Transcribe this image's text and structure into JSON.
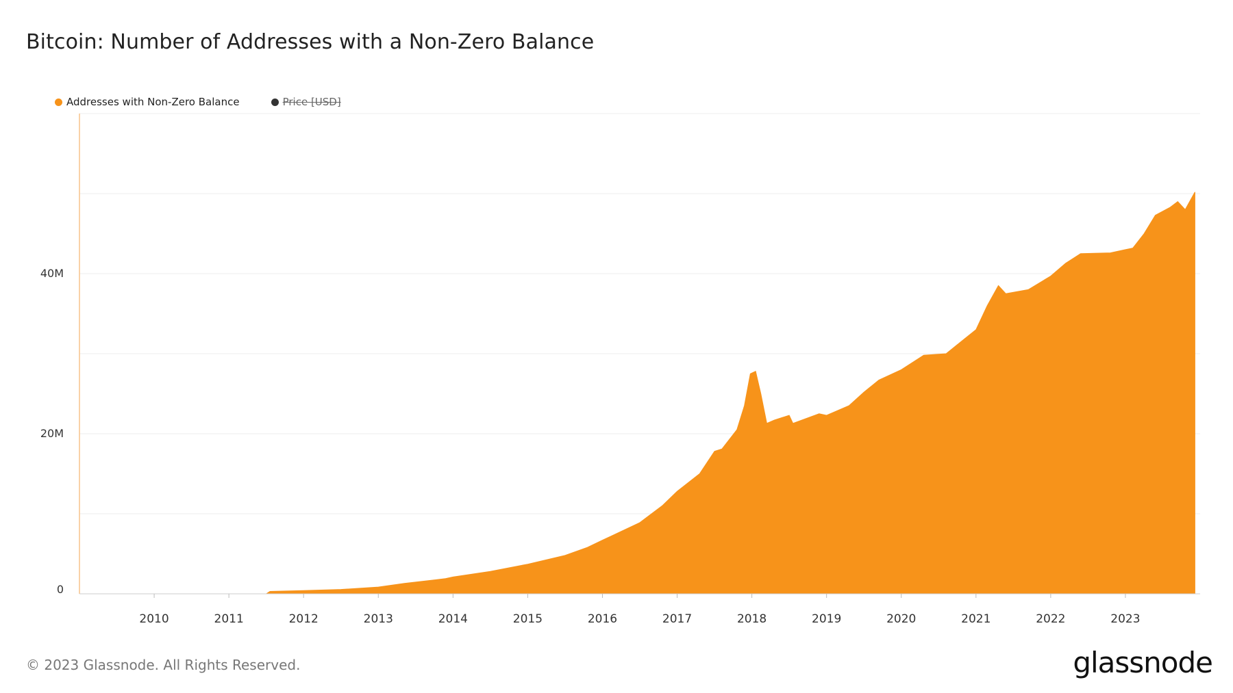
{
  "title": "Bitcoin: Number of Addresses with a Non-Zero Balance",
  "footer": "© 2023 Glassnode. All Rights Reserved.",
  "logo": "glassnode",
  "legend": [
    {
      "label": "Addresses with Non-Zero Balance",
      "color": "#f7931a",
      "active": true
    },
    {
      "label": "Price [USD]",
      "color": "#333333",
      "active": false
    }
  ],
  "chart_data": {
    "type": "area",
    "title": "Bitcoin: Number of Addresses with a Non-Zero Balance",
    "xlabel": "",
    "ylabel": "",
    "color": "#f7931a",
    "grid": true,
    "legend_position": "top-left",
    "xlim": [
      2009.0,
      2024.0
    ],
    "ylim": [
      0,
      60000000
    ],
    "x_ticks": [
      "2010",
      "2011",
      "2012",
      "2013",
      "2014",
      "2015",
      "2016",
      "2017",
      "2018",
      "2019",
      "2020",
      "2021",
      "2022",
      "2023"
    ],
    "y_ticks": [
      {
        "value": 0,
        "label": "0"
      },
      {
        "value": 20000000,
        "label": "20M"
      },
      {
        "value": 40000000,
        "label": "40M"
      }
    ],
    "series": [
      {
        "name": "Addresses with Non-Zero Balance",
        "points": [
          [
            2009.0,
            0
          ],
          [
            2011.5,
            0
          ],
          [
            2011.55,
            300000
          ],
          [
            2012.0,
            400000
          ],
          [
            2012.5,
            550000
          ],
          [
            2013.0,
            850000
          ],
          [
            2013.35,
            1300000
          ],
          [
            2013.9,
            1900000
          ],
          [
            2014.0,
            2100000
          ],
          [
            2014.5,
            2800000
          ],
          [
            2015.0,
            3700000
          ],
          [
            2015.5,
            4800000
          ],
          [
            2015.8,
            5800000
          ],
          [
            2016.0,
            6700000
          ],
          [
            2016.5,
            8900000
          ],
          [
            2016.8,
            11000000
          ],
          [
            2017.0,
            12800000
          ],
          [
            2017.3,
            15000000
          ],
          [
            2017.5,
            17800000
          ],
          [
            2017.6,
            18100000
          ],
          [
            2017.8,
            20500000
          ],
          [
            2017.9,
            23500000
          ],
          [
            2017.98,
            27500000
          ],
          [
            2018.05,
            27800000
          ],
          [
            2018.12,
            25000000
          ],
          [
            2018.2,
            21300000
          ],
          [
            2018.3,
            21700000
          ],
          [
            2018.5,
            22300000
          ],
          [
            2018.55,
            21300000
          ],
          [
            2018.9,
            22500000
          ],
          [
            2019.0,
            22300000
          ],
          [
            2019.3,
            23500000
          ],
          [
            2019.5,
            25200000
          ],
          [
            2019.7,
            26700000
          ],
          [
            2020.0,
            28000000
          ],
          [
            2020.3,
            29800000
          ],
          [
            2020.6,
            30000000
          ],
          [
            2020.8,
            31500000
          ],
          [
            2021.0,
            33000000
          ],
          [
            2021.15,
            36000000
          ],
          [
            2021.3,
            38500000
          ],
          [
            2021.4,
            37500000
          ],
          [
            2021.7,
            38000000
          ],
          [
            2022.0,
            39700000
          ],
          [
            2022.2,
            41300000
          ],
          [
            2022.4,
            42500000
          ],
          [
            2022.8,
            42600000
          ],
          [
            2023.0,
            43000000
          ],
          [
            2023.1,
            43200000
          ],
          [
            2023.25,
            45000000
          ],
          [
            2023.4,
            47300000
          ],
          [
            2023.6,
            48300000
          ],
          [
            2023.7,
            49000000
          ],
          [
            2023.8,
            48000000
          ],
          [
            2023.93,
            50200000
          ]
        ]
      }
    ]
  }
}
